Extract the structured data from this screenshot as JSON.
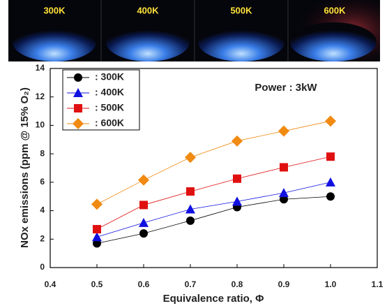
{
  "chart_data": {
    "type": "line",
    "image_labels": [
      "300K",
      "400K",
      "500K",
      "600K"
    ],
    "annotation": "Power : 3kW",
    "x_label": "Equivalence ratio, Φ",
    "y_label": "NOx emissions (ppm @ 15% O₂)",
    "x": [
      0.5,
      0.6,
      0.7,
      0.8,
      0.9,
      1.0
    ],
    "series": [
      {
        "name": ": 300K",
        "color": "#000000",
        "marker": "circle",
        "values": [
          1.7,
          2.4,
          3.3,
          4.25,
          4.8,
          5.0
        ]
      },
      {
        "name": ": 400K",
        "color": "#1010e0",
        "marker": "triangle",
        "values": [
          2.15,
          3.15,
          4.1,
          4.65,
          5.25,
          6.0
        ]
      },
      {
        "name": ": 500K",
        "color": "#e01010",
        "marker": "square",
        "values": [
          2.7,
          4.4,
          5.35,
          6.25,
          7.05,
          7.8
        ]
      },
      {
        "name": ": 600K",
        "color": "#f08a10",
        "marker": "diamond",
        "values": [
          4.45,
          6.15,
          7.75,
          8.9,
          9.6,
          10.3
        ]
      }
    ],
    "xlim": [
      0.4,
      1.1
    ],
    "xticks": [
      0.4,
      0.5,
      0.6,
      0.7,
      0.8,
      0.9,
      {
        "value": 1,
        "label": "1.0"
      },
      1.1
    ],
    "ylim": [
      0,
      14
    ],
    "yticks": [
      0,
      2,
      4,
      6,
      8,
      10,
      12,
      14
    ]
  }
}
